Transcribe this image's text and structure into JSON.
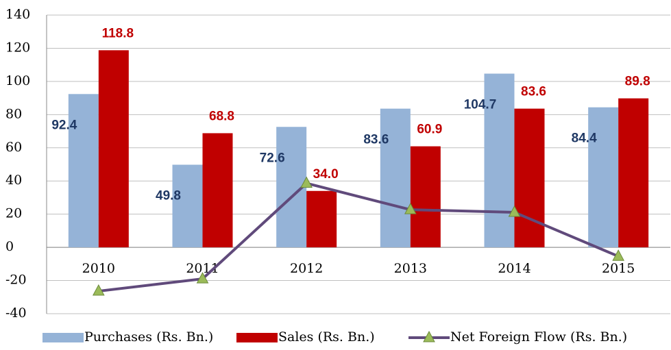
{
  "chart_data": {
    "type": "bar_line",
    "categories": [
      "2010",
      "2011",
      "2012",
      "2013",
      "2014",
      "2015"
    ],
    "series": [
      {
        "name": "Purchases (Rs. Bn.)",
        "type": "bar",
        "color": "#95b3d7",
        "label_color": "#1f3864",
        "values": [
          92.4,
          49.8,
          72.6,
          83.6,
          104.7,
          84.4
        ],
        "value_labels": [
          "92.4",
          "49.8",
          "72.6",
          "83.6",
          "104.7",
          "84.4"
        ]
      },
      {
        "name": "Sales (Rs. Bn.)",
        "type": "bar",
        "color": "#c00000",
        "label_color": "#c00000",
        "values": [
          118.8,
          68.8,
          34.0,
          60.9,
          83.6,
          89.8
        ],
        "value_labels": [
          "118.8",
          "68.8",
          "34.0",
          "60.9",
          "83.6",
          "89.8"
        ]
      },
      {
        "name": "Net Foreign Flow (Rs. Bn.)",
        "type": "line",
        "color": "#604a7b",
        "marker_color": "#9bbb59",
        "values": [
          -26.4,
          -19.0,
          38.6,
          22.7,
          21.1,
          -5.4
        ]
      }
    ],
    "ylim": [
      -40,
      140
    ],
    "yticks": [
      -40,
      -20,
      0,
      20,
      40,
      60,
      80,
      100,
      120,
      140
    ],
    "grid": true,
    "legend": "bottom"
  }
}
